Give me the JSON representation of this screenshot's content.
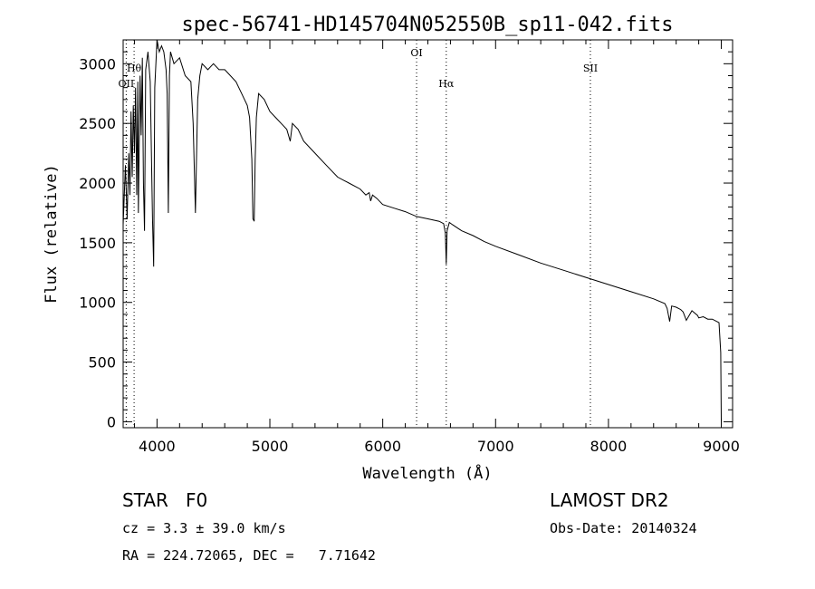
{
  "chart_data": {
    "type": "line",
    "title": "spec-56741-HD145704N052550B_sp11-042.fits",
    "xlabel": "Wavelength (Å)",
    "ylabel": "Flux (relative)",
    "xlim": [
      3700,
      9100
    ],
    "ylim": [
      -50,
      3200
    ],
    "xticks": [
      4000,
      5000,
      6000,
      7000,
      8000,
      9000
    ],
    "yticks": [
      0,
      500,
      1000,
      1500,
      2000,
      2500,
      3000
    ],
    "grid": false,
    "series": [
      {
        "x": [
          3700,
          3720,
          3735,
          3750,
          3760,
          3770,
          3780,
          3790,
          3800,
          3810,
          3820,
          3830,
          3835,
          3850,
          3860,
          3870,
          3880,
          3889,
          3900,
          3920,
          3940,
          3960,
          3970,
          3980,
          4000,
          4020,
          4040,
          4060,
          4080,
          4090,
          4100,
          4110,
          4120,
          4150,
          4200,
          4250,
          4300,
          4320,
          4340,
          4360,
          4380,
          4400,
          4450,
          4500,
          4550,
          4600,
          4650,
          4700,
          4750,
          4800,
          4820,
          4840,
          4850,
          4861,
          4870,
          4880,
          4900,
          4950,
          5000,
          5050,
          5100,
          5150,
          5180,
          5200,
          5250,
          5300,
          5400,
          5500,
          5600,
          5700,
          5800,
          5850,
          5880,
          5893,
          5910,
          5950,
          6000,
          6100,
          6200,
          6300,
          6400,
          6500,
          6540,
          6555,
          6563,
          6570,
          6590,
          6620,
          6700,
          6800,
          6900,
          7000,
          7200,
          7400,
          7600,
          7800,
          8000,
          8200,
          8400,
          8500,
          8520,
          8542,
          8560,
          8600,
          8640,
          8662,
          8690,
          8740,
          8790,
          8800,
          8840,
          8880,
          8920,
          8960,
          8980,
          8995,
          9000
        ],
        "y": [
          1650,
          2150,
          1700,
          2250,
          1900,
          2600,
          2050,
          2650,
          2250,
          2800,
          1900,
          2850,
          1750,
          2900,
          2400,
          3050,
          2000,
          1600,
          2950,
          3100,
          2850,
          1700,
          1300,
          2800,
          3200,
          3100,
          3150,
          3100,
          2950,
          2750,
          1750,
          2900,
          3100,
          3000,
          3050,
          2900,
          2850,
          2500,
          1750,
          2700,
          2900,
          3000,
          2950,
          3000,
          2950,
          2950,
          2900,
          2850,
          2750,
          2650,
          2550,
          2200,
          1700,
          1680,
          2200,
          2550,
          2750,
          2700,
          2600,
          2550,
          2500,
          2450,
          2350,
          2500,
          2450,
          2350,
          2250,
          2150,
          2050,
          2000,
          1950,
          1900,
          1920,
          1850,
          1900,
          1870,
          1820,
          1790,
          1760,
          1720,
          1700,
          1680,
          1660,
          1580,
          1320,
          1600,
          1670,
          1650,
          1600,
          1560,
          1510,
          1470,
          1400,
          1330,
          1270,
          1210,
          1150,
          1090,
          1030,
          990,
          950,
          840,
          970,
          960,
          940,
          920,
          850,
          930,
          890,
          870,
          880,
          860,
          860,
          840,
          830,
          580,
          0
        ]
      }
    ],
    "line_markers": [
      {
        "label": "OII",
        "x": 3727
      },
      {
        "label": "Hθ",
        "x": 3797
      },
      {
        "label": "OI",
        "x": 6300
      },
      {
        "label": "Hα",
        "x": 6563
      },
      {
        "label": "SII",
        "x": 7840
      }
    ]
  },
  "info": {
    "class_line": "STAR   F0",
    "cz_line": "cz = 3.3 ± 39.0 km/s",
    "radec_line": "RA = 224.72065, DEC =   7.71642",
    "survey": "LAMOST DR2",
    "obs_date": "Obs-Date: 20140324"
  }
}
